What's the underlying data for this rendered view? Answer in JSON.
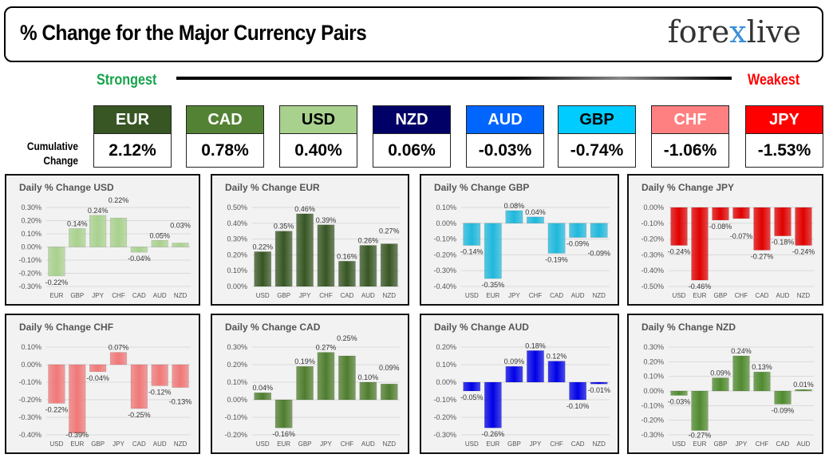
{
  "header": {
    "title": "% Change for the Major Currency Pairs",
    "logo": "forexlive"
  },
  "scale": {
    "strongest": "Strongest",
    "weakest": "Weakest",
    "cumulative_label_1": "Cumulative",
    "cumulative_label_2": "Change"
  },
  "rankings": [
    {
      "currency": "EUR",
      "change": "2.12%",
      "bg": "#375623",
      "fg": "#ffffff"
    },
    {
      "currency": "CAD",
      "change": "0.78%",
      "bg": "#548235",
      "fg": "#ffffff"
    },
    {
      "currency": "USD",
      "change": "0.40%",
      "bg": "#a9d18e",
      "fg": "#000000"
    },
    {
      "currency": "NZD",
      "change": "0.06%",
      "bg": "#000066",
      "fg": "#ffffff"
    },
    {
      "currency": "AUD",
      "change": "-0.03%",
      "bg": "#0066ff",
      "fg": "#ffffff"
    },
    {
      "currency": "GBP",
      "change": "-0.74%",
      "bg": "#00ccff",
      "fg": "#000000"
    },
    {
      "currency": "CHF",
      "change": "-1.06%",
      "bg": "#ff8080",
      "fg": "#ffffff"
    },
    {
      "currency": "JPY",
      "change": "-1.53%",
      "bg": "#ff0000",
      "fg": "#ffffff"
    }
  ],
  "chart_data": [
    {
      "type": "bar",
      "title": "Daily % Change USD",
      "categories": [
        "EUR",
        "GBP",
        "JPY",
        "CHF",
        "CAD",
        "AUD",
        "NZD"
      ],
      "values": [
        -0.22,
        0.14,
        0.24,
        0.22,
        -0.04,
        0.05,
        0.03
      ],
      "ylim": [
        -0.3,
        0.3
      ],
      "color": "#a9d18e",
      "grid": true
    },
    {
      "type": "bar",
      "title": "Daily % Change EUR",
      "categories": [
        "USD",
        "GBP",
        "JPY",
        "CHF",
        "CAD",
        "AUD",
        "NZD"
      ],
      "values": [
        0.22,
        0.35,
        0.46,
        0.39,
        0.16,
        0.26,
        0.27
      ],
      "ylim": [
        0,
        0.5
      ],
      "color": "#375623",
      "grid": true
    },
    {
      "type": "bar",
      "title": "Daily % Change GBP",
      "categories": [
        "USD",
        "EUR",
        "JPY",
        "CHF",
        "CAD",
        "AUD",
        "NZD"
      ],
      "values": [
        -0.14,
        -0.35,
        0.08,
        0.04,
        -0.19,
        -0.09,
        -0.09
      ],
      "ylim": [
        -0.4,
        0.1
      ],
      "color": "#1fb8dc",
      "grid": true
    },
    {
      "type": "bar",
      "title": "Daily % Change JPY",
      "categories": [
        "USD",
        "EUR",
        "GBP",
        "CHF",
        "CAD",
        "AUD",
        "NZD"
      ],
      "values": [
        -0.24,
        -0.46,
        -0.08,
        -0.07,
        -0.27,
        -0.18,
        -0.24
      ],
      "ylim": [
        -0.5,
        0
      ],
      "color": "#e00000",
      "grid": true
    },
    {
      "type": "bar",
      "title": "Daily % Change CHF",
      "categories": [
        "USD",
        "EUR",
        "GBP",
        "JPY",
        "CAD",
        "AUD",
        "NZD"
      ],
      "values": [
        -0.22,
        -0.39,
        -0.04,
        0.07,
        -0.25,
        -0.12,
        -0.13
      ],
      "ylim": [
        -0.4,
        0.1
      ],
      "color": "#f07878",
      "grid": true
    },
    {
      "type": "bar",
      "title": "Daily % Change CAD",
      "categories": [
        "USD",
        "EUR",
        "GBP",
        "JPY",
        "CHF",
        "AUD",
        "NZD"
      ],
      "values": [
        0.04,
        -0.16,
        0.19,
        0.27,
        0.25,
        0.1,
        0.09
      ],
      "ylim": [
        -0.2,
        0.3
      ],
      "color": "#4f7d2e",
      "grid": true
    },
    {
      "type": "bar",
      "title": "Daily % Change AUD",
      "categories": [
        "USD",
        "EUR",
        "GBP",
        "JPY",
        "CHF",
        "CAD",
        "NZD"
      ],
      "values": [
        -0.05,
        -0.26,
        0.09,
        0.18,
        0.12,
        -0.1,
        -0.01
      ],
      "ylim": [
        -0.3,
        0.2
      ],
      "color": "#0000e6",
      "grid": true
    },
    {
      "type": "bar",
      "title": "Daily % Change NZD",
      "categories": [
        "USD",
        "EUR",
        "GBP",
        "JPY",
        "CHF",
        "CAD",
        "AUD"
      ],
      "values": [
        -0.03,
        -0.27,
        0.09,
        0.24,
        0.13,
        -0.09,
        0.01
      ],
      "ylim": [
        -0.3,
        0.3
      ],
      "color": "#4f8a2e",
      "grid": true
    }
  ]
}
